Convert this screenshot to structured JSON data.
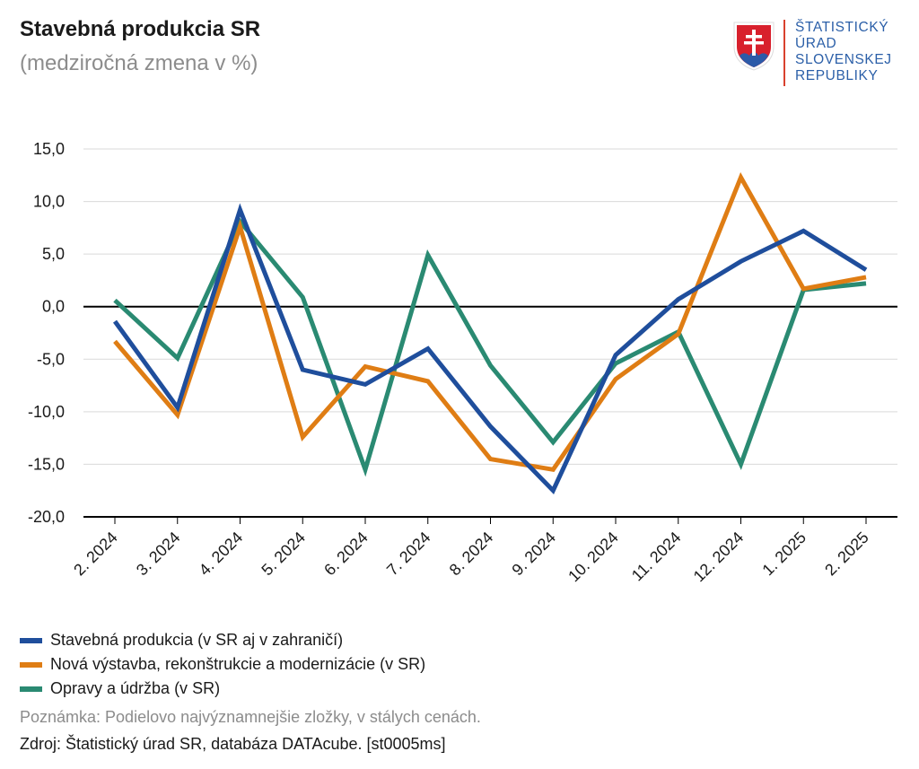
{
  "header": {
    "title": "Stavebná produkcia SR",
    "subtitle": "(medziročná zmena v %)"
  },
  "logo": {
    "lines": [
      "ŠTATISTICKÝ",
      "ÚRAD",
      "SLOVENSKEJ",
      "REPUBLIKY"
    ]
  },
  "chart_data": {
    "type": "line",
    "title": "Stavebná produkcia SR",
    "subtitle": "(medziročná zmena v %)",
    "xlabel": "",
    "ylabel": "",
    "ylim": [
      -20,
      15
    ],
    "yticks": [
      15,
      10,
      5,
      0,
      -5,
      -10,
      -15,
      -20
    ],
    "ytick_labels": [
      "15,0",
      "10,0",
      "5,0",
      "0,0",
      "-5,0",
      "-10,0",
      "-15,0",
      "-20,0"
    ],
    "categories": [
      "2. 2024",
      "3. 2024",
      "4. 2024",
      "5. 2024",
      "6. 2024",
      "7. 2024",
      "8. 2024",
      "9. 2024",
      "10. 2024",
      "11. 2024",
      "12. 2024",
      "1. 2025",
      "2. 2025"
    ],
    "series": [
      {
        "name": "Stavebná produkcia (v SR aj v zahraničí)",
        "color": "#1f4e9c",
        "values": [
          -1.4,
          -9.6,
          9.2,
          -6.0,
          -7.4,
          -4.0,
          -11.4,
          -17.5,
          -4.6,
          0.7,
          4.3,
          7.2,
          3.5
        ]
      },
      {
        "name": "Nová výstavba, rekonštrukcie a modernizácie (v SR)",
        "color": "#df7d14",
        "values": [
          -3.3,
          -10.3,
          7.6,
          -12.4,
          -5.7,
          -7.1,
          -14.5,
          -15.5,
          -6.9,
          -2.6,
          12.3,
          1.7,
          2.8
        ]
      },
      {
        "name": "Opravy a údržba (v SR)",
        "color": "#2a8a72",
        "values": [
          0.6,
          -4.9,
          8.1,
          0.9,
          -15.5,
          4.9,
          -5.6,
          -12.9,
          -5.4,
          -2.4,
          -15.0,
          1.6,
          2.2
        ]
      }
    ],
    "legend_position": "bottom-left",
    "grid": true
  },
  "footer": {
    "note": "Poznámka: Podielovo najvýznamnejšie zložky, v stálych cenách.",
    "source": "Zdroj: Štatistický úrad SR, databáza DATAcube. [st0005ms]"
  }
}
